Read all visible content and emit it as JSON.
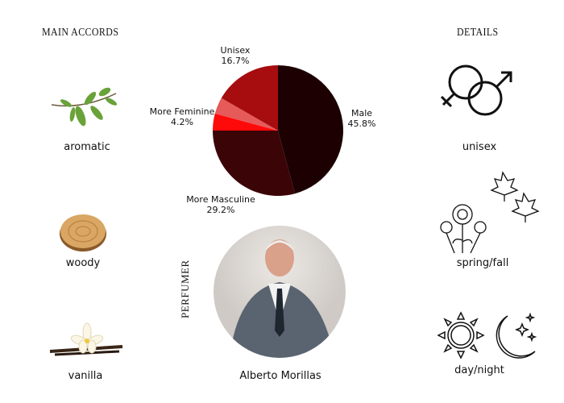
{
  "accords": {
    "heading": "MAIN ACCORDS",
    "items": [
      {
        "label": "aromatic",
        "icon": "herb-sprig-icon"
      },
      {
        "label": "woody",
        "icon": "wood-slice-icon"
      },
      {
        "label": "vanilla",
        "icon": "vanilla-flower-icon"
      }
    ]
  },
  "details": {
    "heading": "DETAILS",
    "items": [
      {
        "label": "unisex",
        "icon": "gender-symbols-icon"
      },
      {
        "label": "spring/fall",
        "icon": "flowers-leaves-icon"
      },
      {
        "label": "day/night",
        "icon": "sun-moon-icon"
      }
    ]
  },
  "perfumer": {
    "heading": "PERFUMER",
    "name": "Alberto Morillas"
  },
  "chart_data": {
    "type": "pie",
    "slices": [
      {
        "name": "Male",
        "value": 45.8,
        "label": "45.8%",
        "color": "#1c0002"
      },
      {
        "name": "More Masculine",
        "value": 29.2,
        "label": "29.2%",
        "color": "#3b0508"
      },
      {
        "name": "More Feminine",
        "value": 4.2,
        "label": "4.2%",
        "color": "#ff0a0a"
      },
      {
        "name": "",
        "value": 4.1,
        "label": "",
        "color": "#e65a5a"
      },
      {
        "name": "Unisex",
        "value": 16.7,
        "label": "16.7%",
        "color": "#a70c0e"
      }
    ]
  }
}
